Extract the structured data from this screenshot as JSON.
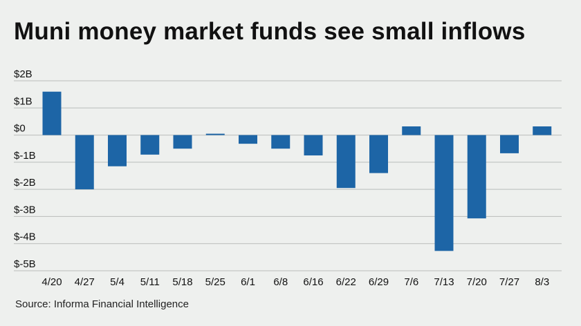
{
  "header": {
    "title": "Muni money market funds see small inflows"
  },
  "footer": {
    "source": "Source: Informa Financial Intelligence"
  },
  "chart_data": {
    "type": "bar",
    "title": "Muni money market funds see small inflows",
    "xlabel": "",
    "ylabel": "",
    "categories": [
      "4/20",
      "4/27",
      "5/4",
      "5/11",
      "5/18",
      "5/25",
      "6/1",
      "6/8",
      "6/16",
      "6/22",
      "6/29",
      "7/6",
      "7/13",
      "7/20",
      "7/27",
      "8/3"
    ],
    "values": [
      1.6,
      -2.0,
      -1.15,
      -0.72,
      -0.5,
      0.05,
      -0.32,
      -0.5,
      -0.75,
      -1.95,
      -1.4,
      0.32,
      -4.27,
      -3.07,
      -0.67,
      0.32
    ],
    "unit": "billion dollars",
    "ylim": [
      -5,
      2
    ],
    "yticks": [
      2,
      1,
      0,
      -1,
      -2,
      -3,
      -4,
      -5
    ],
    "ytick_labels": [
      "$2B",
      "$1B",
      "$0",
      "$-1B",
      "$-2B",
      "$-3B",
      "$-4B",
      "$-5B"
    ],
    "grid": true,
    "legend": "none",
    "bar_color": "#1d65a6",
    "grid_color": "#b9bcba"
  }
}
